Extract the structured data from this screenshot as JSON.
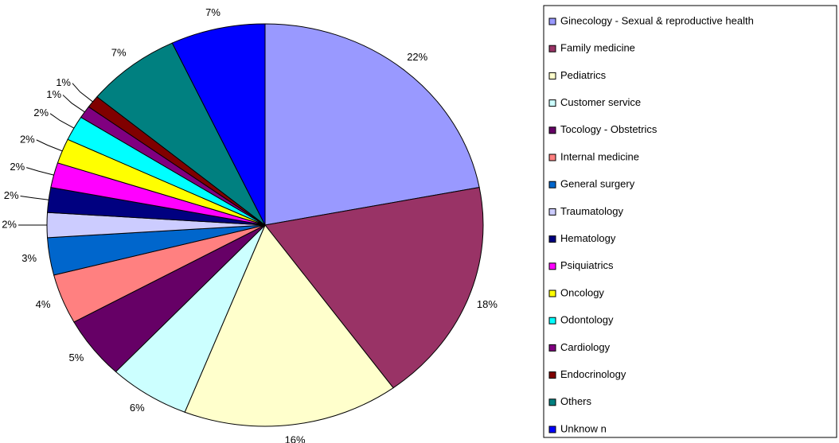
{
  "chart_data": {
    "type": "pie",
    "categories": [
      "Ginecology - Sexual & reproductive health",
      "Family medicine",
      "Pediatrics",
      "Customer service",
      "Tocology - Obstetrics",
      "Internal medicine",
      "General surgery",
      "Traumatology",
      "Hematology",
      "Psiquiatrics",
      "Oncology",
      "Odontology",
      "Cardiology",
      "Endocrinology",
      "Others",
      "Unknow n"
    ],
    "values": [
      22,
      18,
      16,
      6,
      5,
      4,
      3,
      2,
      2,
      2,
      2,
      2,
      1,
      1,
      7,
      7
    ],
    "value_labels": [
      "22%",
      "18%",
      "16%",
      "6%",
      "5%",
      "4%",
      "3%",
      "2%",
      "2%",
      "2%",
      "2%",
      "2%",
      "1%",
      "1%",
      "7%",
      "7%"
    ],
    "colors": [
      "#9999ff",
      "#993366",
      "#ffffcc",
      "#ccffff",
      "#660066",
      "#ff8080",
      "#0066cc",
      "#ccccff",
      "#000080",
      "#ff00ff",
      "#ffff00",
      "#00ffff",
      "#800080",
      "#800000",
      "#008080",
      "#0000ff"
    ],
    "legend": "right"
  }
}
